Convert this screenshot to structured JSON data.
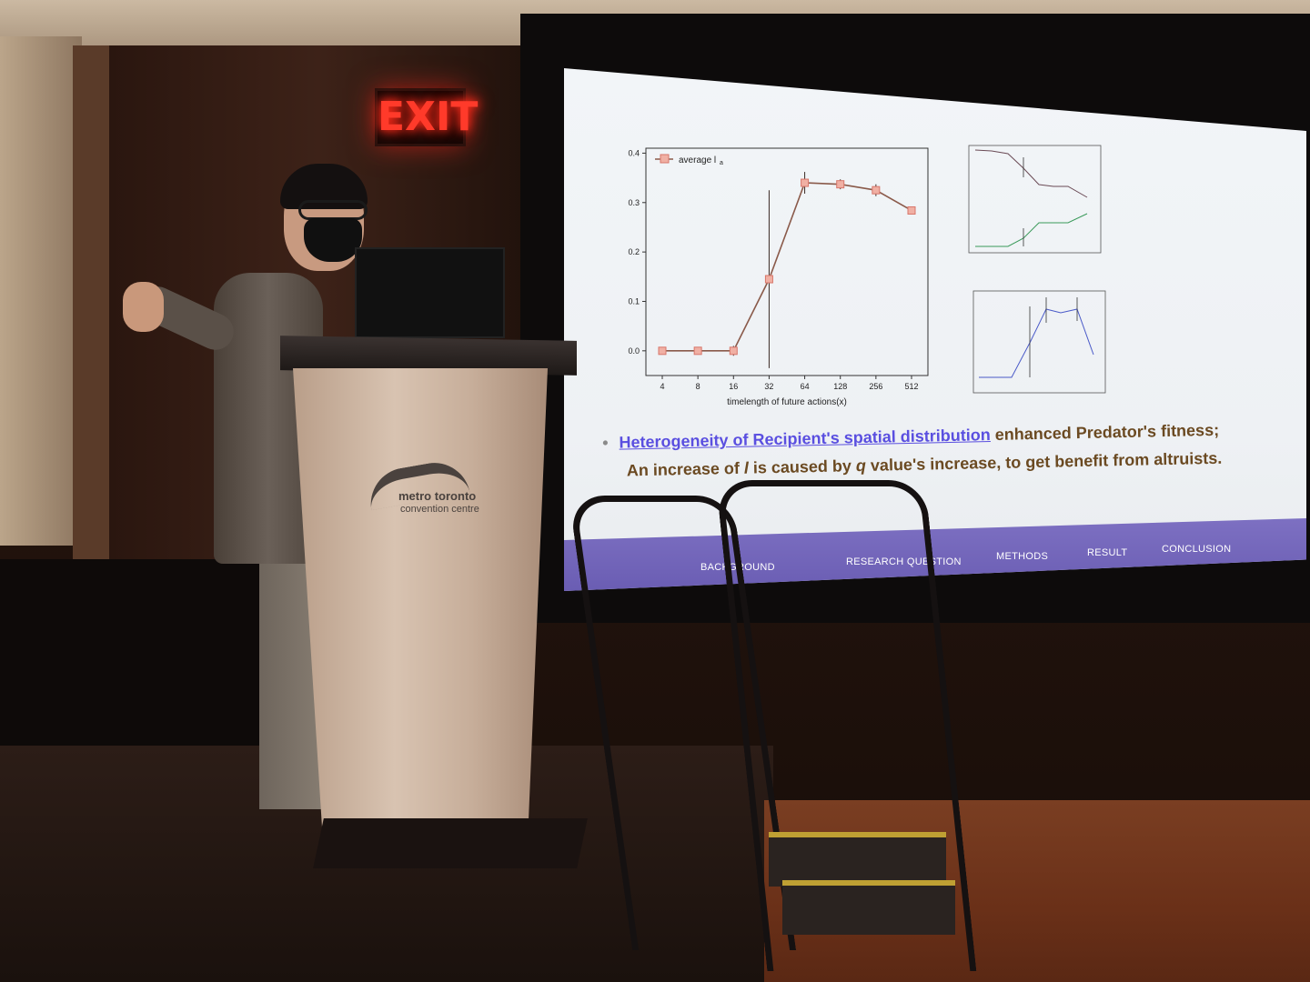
{
  "exit_sign": {
    "text": "EXIT"
  },
  "podium": {
    "logo_line1": "metro toronto",
    "logo_line2": "convention centre"
  },
  "slide": {
    "main_chart": {
      "legend": "average l",
      "legend_sub": "a",
      "xlabel": "timelength of future actions(x)",
      "x_ticks": [
        "4",
        "8",
        "16",
        "32",
        "64",
        "128",
        "256",
        "512"
      ],
      "y_ticks": [
        "0.0",
        "0.1",
        "0.2",
        "0.3",
        "0.4"
      ]
    },
    "bullet": {
      "link_text": "Heterogeneity of Recipient's spatial distribution",
      "text_after": " enhanced Predator's fitness;",
      "line2_a": "An increase of ",
      "line2_b": "l",
      "line2_c": " is caused by ",
      "line2_q": "q",
      "line2_d": " value's increase, to get benefit from altruists."
    },
    "nav": {
      "background": "BACKGROUND",
      "research_question": "RESEARCH QUESTION",
      "methods": "METHODS",
      "result": "RESULT",
      "conclusion": "CONCLUSION"
    },
    "colors": {
      "series": "#d8766a",
      "accent_nav": "#7d70c2",
      "link": "#5a4fe0"
    }
  },
  "chart_data": {
    "type": "line",
    "title": "",
    "xlabel": "timelength of future actions(x)",
    "ylabel": "",
    "categories": [
      "4",
      "8",
      "16",
      "32",
      "64",
      "128",
      "256",
      "512"
    ],
    "series": [
      {
        "name": "average l",
        "values": [
          0.0,
          0.0,
          0.0,
          0.145,
          0.34,
          0.337,
          0.325,
          0.284
        ]
      }
    ],
    "error": [
      0.0,
      0.0,
      0.01,
      0.18,
      0.022,
      0.01,
      0.012,
      0.0
    ],
    "ylim": [
      -0.05,
      0.41
    ],
    "grid": false,
    "legend": "top-left"
  }
}
